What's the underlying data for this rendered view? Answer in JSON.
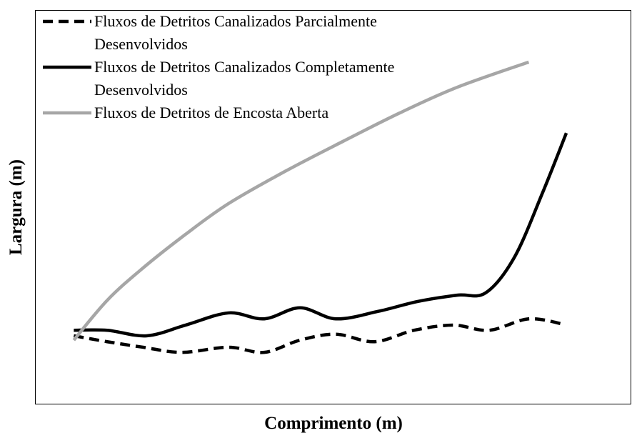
{
  "chart_data": {
    "type": "line",
    "xlabel": "Comprimento (m)",
    "ylabel": "Largura (m)",
    "xlim": [
      0,
      100
    ],
    "ylim": [
      0,
      100
    ],
    "legend": "top-left",
    "series": [
      {
        "name": "Fluxos de Detritos Canalizados Parcialmente Desenvolvidos",
        "color": "#000000",
        "dash": true,
        "x": [
          6.5,
          12.1,
          18.1,
          24.6,
          32.4,
          38.4,
          44.4,
          50.4,
          56.9,
          63.5,
          70.1,
          76.1,
          82.7,
          88.6
        ],
        "values": [
          17.4,
          15.9,
          14.5,
          13.2,
          14.5,
          13.2,
          16.3,
          17.8,
          15.9,
          18.8,
          20.1,
          18.8,
          21.7,
          20.3
        ]
      },
      {
        "name": "Fluxos de Detritos Canalizados Completamente Desenvolvidos",
        "color": "#000000",
        "dash": false,
        "x": [
          6.5,
          12.1,
          18.7,
          25.2,
          32.4,
          38.4,
          44.4,
          50.4,
          57.5,
          64.1,
          70.7,
          75.5,
          80.3,
          85.0,
          89.0
        ],
        "values": [
          18.8,
          18.8,
          17.4,
          20.1,
          23.2,
          21.7,
          24.5,
          21.7,
          23.6,
          26.1,
          27.7,
          28.3,
          37.3,
          53.6,
          68.8
        ]
      },
      {
        "name": "Fluxos de Detritos de Encosta Aberta",
        "color": "#a6a6a6",
        "dash": false,
        "x": [
          6.5,
          12.1,
          18.1,
          25.2,
          32.4,
          41.9,
          51.6,
          61.1,
          70.7,
          82.7
        ],
        "values": [
          16.3,
          26.4,
          34.6,
          43.1,
          50.9,
          59.1,
          66.7,
          73.9,
          80.4,
          86.8
        ]
      }
    ]
  }
}
